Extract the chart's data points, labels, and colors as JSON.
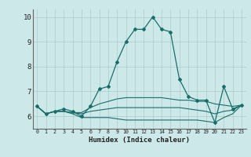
{
  "xlabel": "Humidex (Indice chaleur)",
  "bg_color": "#cce8e8",
  "grid_color": "#aacccc",
  "line_color": "#1a6e6a",
  "xmin": -0.5,
  "xmax": 23.5,
  "ymin": 5.5,
  "ymax": 10.3,
  "yticks": [
    6,
    7,
    8,
    9,
    10
  ],
  "x": [
    0,
    1,
    2,
    3,
    4,
    5,
    6,
    7,
    8,
    9,
    10,
    11,
    12,
    13,
    14,
    15,
    16,
    17,
    18,
    19,
    20,
    21,
    22,
    23
  ],
  "curve1": [
    6.4,
    6.1,
    6.2,
    6.3,
    6.2,
    6.0,
    6.4,
    7.1,
    7.2,
    8.2,
    9.0,
    9.5,
    9.5,
    10.0,
    9.5,
    9.4,
    7.5,
    6.8,
    6.65,
    6.65,
    5.75,
    7.2,
    6.3,
    6.45
  ],
  "curve2": [
    6.4,
    6.1,
    6.2,
    6.2,
    6.15,
    6.15,
    6.35,
    6.5,
    6.6,
    6.7,
    6.75,
    6.75,
    6.75,
    6.75,
    6.75,
    6.7,
    6.65,
    6.65,
    6.6,
    6.6,
    6.5,
    6.45,
    6.4,
    6.45
  ],
  "curve3": [
    6.4,
    6.1,
    6.2,
    6.2,
    6.15,
    6.1,
    6.2,
    6.25,
    6.3,
    6.35,
    6.35,
    6.35,
    6.35,
    6.35,
    6.35,
    6.35,
    6.35,
    6.3,
    6.25,
    6.2,
    6.1,
    6.2,
    6.25,
    6.45
  ],
  "curve4": [
    6.4,
    6.1,
    6.2,
    6.2,
    6.1,
    5.95,
    5.95,
    5.95,
    5.95,
    5.9,
    5.85,
    5.85,
    5.85,
    5.85,
    5.85,
    5.85,
    5.85,
    5.85,
    5.85,
    5.8,
    5.75,
    5.95,
    6.1,
    6.45
  ]
}
